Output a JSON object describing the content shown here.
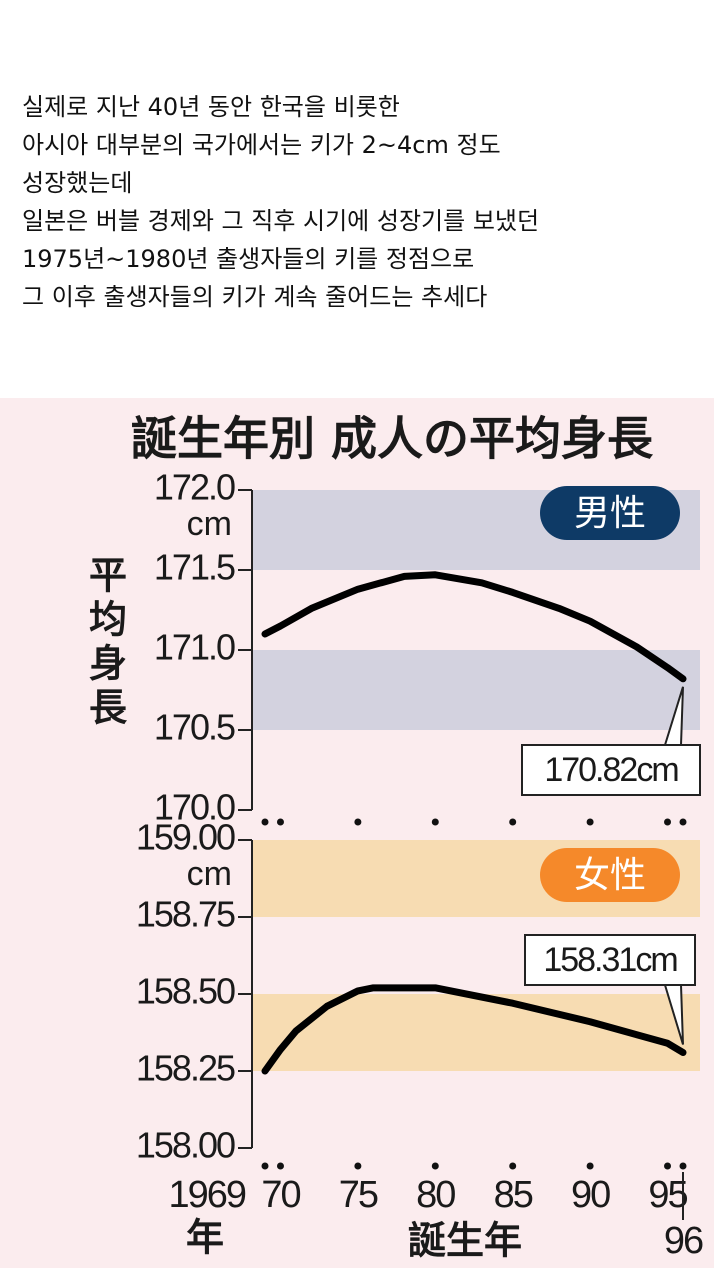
{
  "text": {
    "lines": [
      "실제로 지난 40년 동안 한국을 비롯한",
      "아시아 대부분의 국가에서는 키가 2~4cm 정도",
      "성장했는데",
      "일본은 버블 경제와 그 직후 시기에 성장기를 보냈던",
      "1975년~1980년 출생자들의 키를 정점으로",
      "그 이후 출생자들의 키가 계속 줄어드는 추세다"
    ]
  },
  "title": "誕生年別  成人の平均身長",
  "chart_data": [
    {
      "type": "line",
      "legend": "男性",
      "legend_color": "#0e3a66",
      "unit": "cm",
      "ylabel": "平均身長",
      "color": "#000000",
      "band_color": "#d3d2df",
      "x": [
        1969,
        1970,
        1972,
        1975,
        1978,
        1980,
        1983,
        1985,
        1988,
        1990,
        1993,
        1995,
        1996
      ],
      "values": [
        171.1,
        171.15,
        171.26,
        171.38,
        171.46,
        171.47,
        171.42,
        171.36,
        171.26,
        171.18,
        171.02,
        170.89,
        170.82
      ],
      "annotation": "170.82cm",
      "xlim": [
        1969,
        1996
      ],
      "xticks": [
        1969,
        1970,
        1975,
        1980,
        1985,
        1990,
        1995,
        1996
      ],
      "ylim": [
        170,
        172
      ],
      "yticks": [
        {
          "value": 170,
          "label": "170.0"
        },
        {
          "value": 170.5,
          "label": "170.5"
        },
        {
          "value": 171,
          "label": "171.0"
        },
        {
          "value": 171.5,
          "label": "171.5"
        },
        {
          "value": 172,
          "label": "172.0"
        }
      ]
    },
    {
      "type": "line",
      "legend": "女性",
      "legend_color": "#f5892a",
      "unit": "cm",
      "xlabel": "誕生年",
      "year_unit": "年",
      "color": "#000000",
      "band_color": "#f7dcb2",
      "x": [
        1969,
        1970,
        1971,
        1973,
        1975,
        1976,
        1978,
        1980,
        1985,
        1990,
        1995,
        1996
      ],
      "values": [
        158.25,
        158.32,
        158.38,
        158.46,
        158.51,
        158.52,
        158.52,
        158.52,
        158.47,
        158.41,
        158.34,
        158.31
      ],
      "annotation": "158.31cm",
      "xlim": [
        1969,
        1996
      ],
      "xticks": [
        1969,
        {
          "value": 1970,
          "label": "70"
        },
        {
          "value": 1975,
          "label": "75"
        },
        {
          "value": 1980,
          "label": "80"
        },
        {
          "value": 1985,
          "label": "85"
        },
        {
          "value": 1990,
          "label": "90"
        },
        {
          "value": 1995,
          "label": "95"
        },
        {
          "value": 1996,
          "label": "96"
        }
      ],
      "ylim": [
        158,
        159
      ],
      "yticks": [
        {
          "value": 158,
          "label": "158.00"
        },
        {
          "value": 158.25,
          "label": "158.25"
        },
        {
          "value": 158.5,
          "label": "158.50"
        },
        {
          "value": 158.75,
          "label": "158.75"
        },
        {
          "value": 159,
          "label": "159.00"
        }
      ]
    }
  ]
}
